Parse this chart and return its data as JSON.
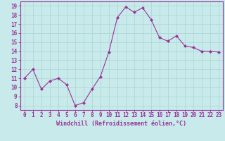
{
  "x": [
    0,
    1,
    2,
    3,
    4,
    5,
    6,
    7,
    8,
    9,
    10,
    11,
    12,
    13,
    14,
    15,
    16,
    17,
    18,
    19,
    20,
    21,
    22,
    23
  ],
  "y": [
    11,
    12,
    9.8,
    10.7,
    11,
    10.3,
    8.0,
    8.3,
    9.8,
    11.2,
    13.9,
    17.7,
    18.9,
    18.3,
    18.8,
    17.5,
    15.5,
    15.1,
    15.7,
    14.6,
    14.4,
    14.0,
    14.0,
    13.9
  ],
  "line_color": "#993399",
  "marker_color": "#993399",
  "bg_color": "#c8eaea",
  "grid_color": "#b0d8d8",
  "xlabel": "Windchill (Refroidissement éolien,°C)",
  "ylabel": "",
  "ylim": [
    7.5,
    19.5
  ],
  "yticks": [
    8,
    9,
    10,
    11,
    12,
    13,
    14,
    15,
    16,
    17,
    18,
    19
  ],
  "xticks": [
    0,
    1,
    2,
    3,
    4,
    5,
    6,
    7,
    8,
    9,
    10,
    11,
    12,
    13,
    14,
    15,
    16,
    17,
    18,
    19,
    20,
    21,
    22,
    23
  ],
  "label_color": "#993399",
  "tick_color": "#993399",
  "font_family": "monospace",
  "xlabel_fontsize": 6.0,
  "tick_fontsize": 5.5
}
